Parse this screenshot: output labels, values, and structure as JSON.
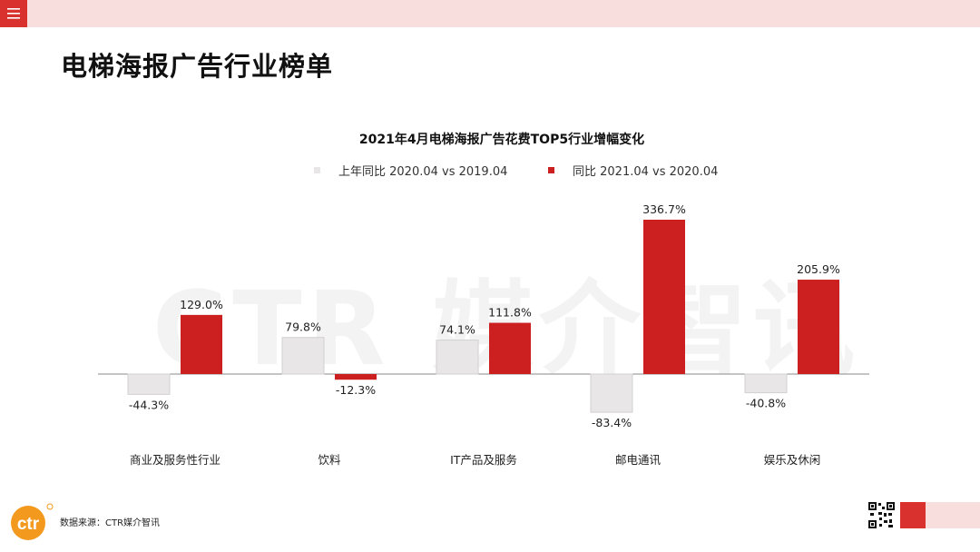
{
  "header": {
    "menu_icon": "menu-icon",
    "page_title": "电梯海报广告行业榜单"
  },
  "watermark": "CTR 媒介智讯",
  "colors": {
    "accent": "#d9312d",
    "topbar": "#f9dede",
    "series_prev": "#e8e6e6",
    "series_curr": "#cc1f1f"
  },
  "chart_data": {
    "type": "bar",
    "title": "2021年4月电梯海报广告花费TOP5行业增幅变化",
    "xlabel": "",
    "ylabel": "",
    "categories": [
      "商业及服务性行业",
      "饮料",
      "IT产品及服务",
      "邮电通讯",
      "娱乐及休闲"
    ],
    "series": [
      {
        "name": "上年同比 2020.04 vs 2019.04",
        "values": [
          -44.3,
          79.8,
          74.1,
          -83.4,
          -40.8
        ],
        "labels": [
          "-44.3%",
          "79.8%",
          "74.1%",
          "-83.4%",
          "-40.8%"
        ]
      },
      {
        "name": "同比 2021.04 vs 2020.04",
        "values": [
          129.0,
          -12.3,
          111.8,
          336.7,
          205.9
        ],
        "labels": [
          "129.0%",
          "-12.3%",
          "111.8%",
          "336.7%",
          "205.9%"
        ]
      }
    ],
    "legend_position": "top",
    "grid": false,
    "baseline": 0
  },
  "footer": {
    "logo_text": "ctr",
    "source": "数据来源：CTR媒介智讯"
  }
}
